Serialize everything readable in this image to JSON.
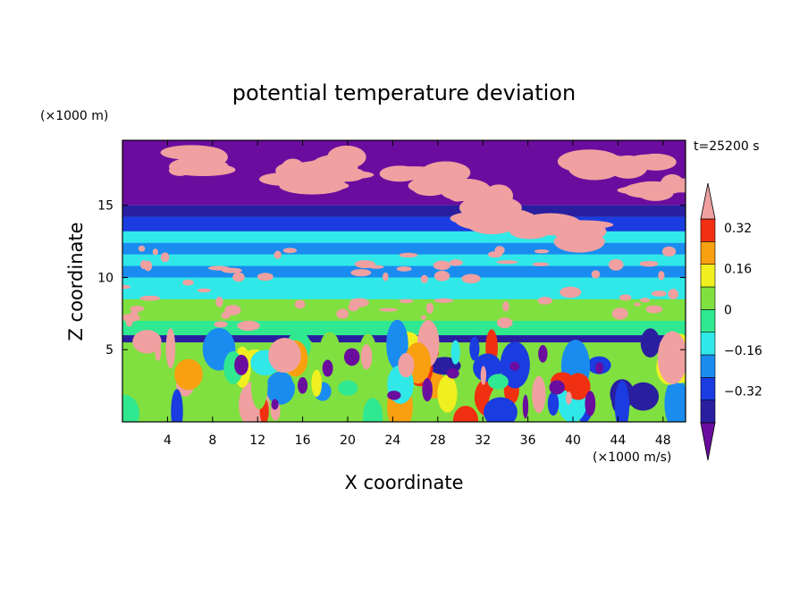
{
  "chart_data": {
    "type": "heatmap",
    "title": "potential temperature deviation",
    "xlabel": "X coordinate",
    "ylabel": "Z coordinate",
    "x_unit": "(×1000 m/s)",
    "y_unit": "(×1000 m)",
    "time_label": "t=25200 s",
    "xlim": [
      0,
      50
    ],
    "ylim": [
      0,
      19.5
    ],
    "x_ticks": [
      4,
      8,
      12,
      16,
      20,
      24,
      28,
      32,
      36,
      40,
      44,
      48
    ],
    "y_ticks": [
      5,
      10,
      15
    ],
    "colorbar": {
      "levels": [
        -0.4,
        -0.32,
        -0.24,
        -0.16,
        -0.08,
        0,
        0.08,
        0.16,
        0.24,
        0.32,
        0.4
      ],
      "labels": [
        "0.32",
        "0.16",
        "0",
        "−0.16",
        "−0.32"
      ],
      "label_values": [
        0.32,
        0.16,
        0,
        -0.16,
        -0.32
      ],
      "colors": [
        "#6a0d9e",
        "#2a1ea0",
        "#1a3ce0",
        "#1a8cf0",
        "#30e8e8",
        "#30e890",
        "#80e040",
        "#f0f020",
        "#f8a010",
        "#f03010",
        "#f0a0a0"
      ],
      "over_color": "#f0a0a0",
      "under_color": "#6a0d9e"
    },
    "bands": [
      {
        "z": [
          0,
          6
        ],
        "pattern": "turbulent"
      },
      {
        "z": [
          6,
          7
        ],
        "value": -0.04
      },
      {
        "z": [
          7,
          8.5
        ],
        "value": 0.04
      },
      {
        "z": [
          8.5,
          10
        ],
        "value": -0.12
      },
      {
        "z": [
          10,
          10.8
        ],
        "value": -0.2
      },
      {
        "z": [
          10.8,
          11.6
        ],
        "value": -0.12
      },
      {
        "z": [
          11.6,
          12.4
        ],
        "value": -0.2
      },
      {
        "z": [
          12.4,
          13.2
        ],
        "value": -0.12
      },
      {
        "z": [
          13.2,
          14.2
        ],
        "value": -0.28
      },
      {
        "z": [
          14.2,
          15
        ],
        "value": -0.36
      },
      {
        "z": [
          15,
          19.5
        ],
        "value": -0.44
      }
    ]
  }
}
